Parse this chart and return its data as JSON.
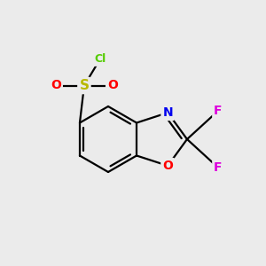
{
  "background_color": "#ebebeb",
  "bond_color": "#000000",
  "atom_colors": {
    "S": "#b8b800",
    "O": "#ff0000",
    "Cl": "#55cc00",
    "N": "#0000ee",
    "F": "#dd00dd"
  },
  "figsize": [
    3.0,
    3.0
  ],
  "dpi": 100,
  "xlim": [
    0,
    300
  ],
  "ylim": [
    0,
    300
  ],
  "bond_lw": 1.6,
  "label_fs": 10
}
